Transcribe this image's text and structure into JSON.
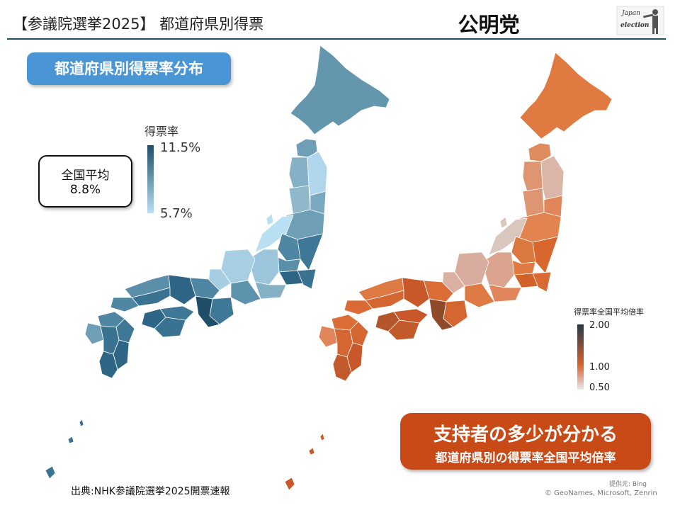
{
  "header": {
    "title": "【参議院選挙2025】 都道府県別得票",
    "party": "公明党",
    "logo_line1": "Japan",
    "logo_line2": "election"
  },
  "left_map": {
    "banner": "都道府県別得票率分布",
    "legend_title": "得票率",
    "legend_max": "11.5%",
    "legend_min": "5.7%",
    "average_label": "全国平均",
    "average_value": "8.8%",
    "colors": {
      "high": "#1f4e6a",
      "mid": "#5e93ae",
      "low": "#b9dff3"
    }
  },
  "right_map": {
    "legend_title": "得票率全国平均倍率",
    "legend_max": "2.00",
    "legend_mid": "1.00",
    "legend_min": "0.50",
    "banner_line1": "支持者の多少が分かる",
    "banner_line2": "都道府県別の得票率全国平均倍率",
    "colors": {
      "high": "#26384a",
      "mid": "#d9622b",
      "low": "#e8e8ee"
    }
  },
  "footer": {
    "source": "出典:NHK参議院選挙2025開票速報",
    "credit_line1": "提供元: Bing",
    "credit_line2": "© GeoNames, Microsoft, Zenrin"
  }
}
